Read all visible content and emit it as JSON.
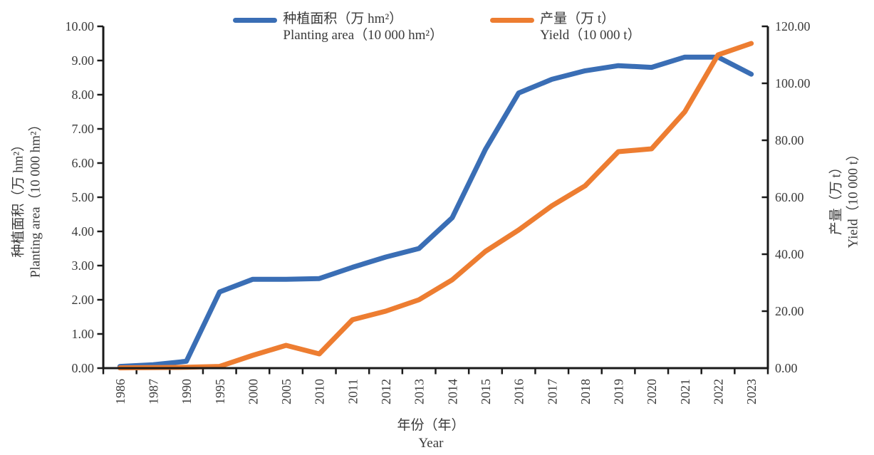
{
  "chart_data": {
    "type": "line",
    "title": "",
    "categories": [
      "1986",
      "1987",
      "1990",
      "1995",
      "2000",
      "2005",
      "2010",
      "2011",
      "2012",
      "2013",
      "2014",
      "2015",
      "2016",
      "2017",
      "2018",
      "2019",
      "2020",
      "2021",
      "2022",
      "2023"
    ],
    "series": [
      {
        "name": "种植面积（万 hm²）",
        "name_en": "Planting area（10 000 hm²）",
        "axis": "left",
        "color": "#3A6EB5",
        "values": [
          0.05,
          0.1,
          0.2,
          2.23,
          2.6,
          2.6,
          2.62,
          2.95,
          3.25,
          3.5,
          4.4,
          6.4,
          8.05,
          8.45,
          8.7,
          8.85,
          8.8,
          9.1,
          9.1,
          8.6
        ]
      },
      {
        "name": "产量（万 t）",
        "name_en": "Yield（10 000 t）",
        "axis": "right",
        "color": "#ED7D31",
        "values": [
          0.1,
          0.2,
          0.3,
          0.6,
          4.5,
          8.0,
          5.0,
          17.0,
          20.0,
          24.0,
          31.0,
          41.0,
          48.5,
          57.0,
          64.0,
          76.0,
          77.0,
          90.0,
          110.0,
          114.0
        ]
      }
    ],
    "left_axis": {
      "label_zh": "种植面积（万 hm²）",
      "label_en": "Planting area（10 000 hm²）",
      "min": 0,
      "max": 10,
      "step": 1,
      "decimals": 2
    },
    "right_axis": {
      "label_zh": "产量（万 t）",
      "label_en": "Yield（10 000 t）",
      "min": 0,
      "max": 120,
      "step": 20,
      "decimals": 2
    },
    "x_axis": {
      "label_zh": "年份（年）",
      "label_en": "Year"
    },
    "legend_position": "top",
    "grid": false,
    "axis_color": "#1a1a1a",
    "text_color": "#3a3a3a"
  }
}
